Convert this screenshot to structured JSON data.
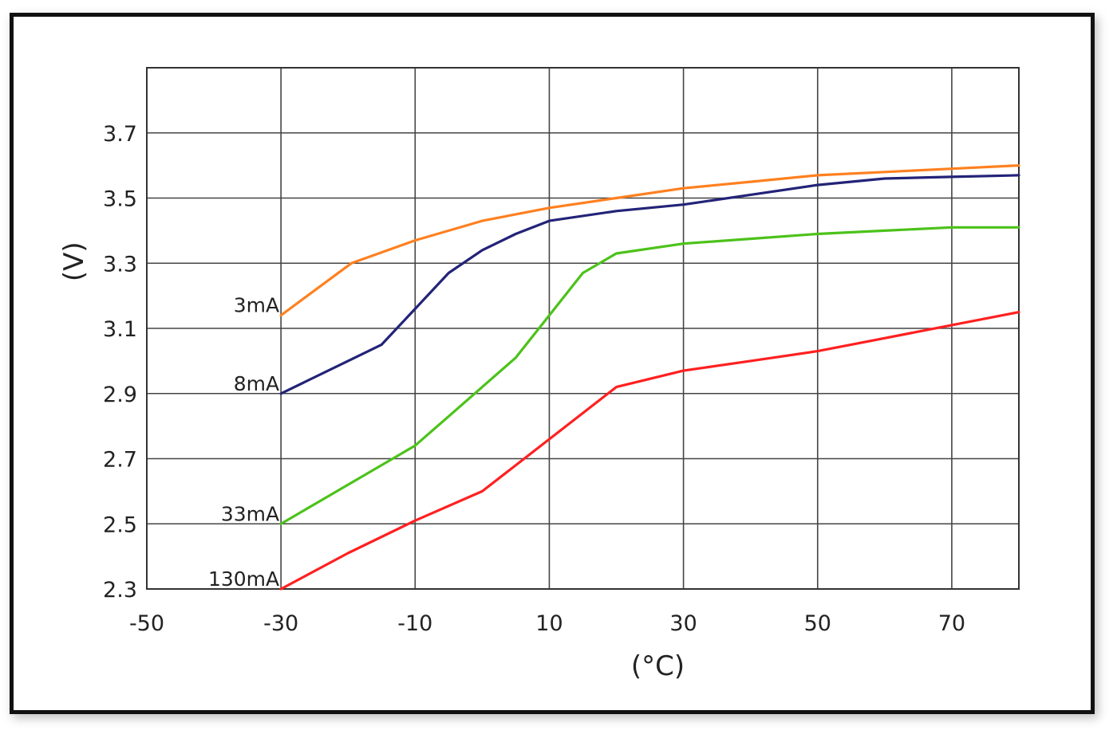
{
  "chart_data": {
    "type": "line",
    "title": "",
    "xlabel": "(°C)",
    "ylabel": "(V)",
    "xlim": [
      -50,
      80
    ],
    "ylim": [
      2.3,
      3.9
    ],
    "xticks": [
      -50,
      -30,
      -10,
      10,
      30,
      50,
      70
    ],
    "xtick_labels": [
      "-50",
      "-30",
      "-10",
      "10",
      "30",
      "50",
      "70"
    ],
    "yticks": [
      2.3,
      2.5,
      2.7,
      2.9,
      3.1,
      3.3,
      3.5,
      3.7
    ],
    "ytick_labels": [
      "2.3",
      "2.5",
      "2.7",
      "2.9",
      "3.1",
      "3.3",
      "3.5",
      "3.7"
    ],
    "x_grid": [
      -50,
      -30,
      -10,
      10,
      30,
      50,
      70,
      80
    ],
    "y_grid": [
      2.3,
      2.5,
      2.7,
      2.9,
      3.1,
      3.3,
      3.5,
      3.7,
      3.9
    ],
    "grid": true,
    "series": [
      {
        "name": "3mA",
        "color": "#ff8020",
        "x": [
          -30,
          -19.5,
          -10,
          0,
          10,
          20,
          30,
          40,
          50,
          60,
          70,
          80
        ],
        "y": [
          3.14,
          3.3,
          3.37,
          3.43,
          3.47,
          3.5,
          3.53,
          3.55,
          3.57,
          3.58,
          3.59,
          3.6
        ]
      },
      {
        "name": "8mA",
        "color": "#232378",
        "x": [
          -30,
          -20,
          -15,
          -10,
          -5,
          0,
          5,
          10,
          20,
          30,
          40,
          50,
          60,
          70,
          80
        ],
        "y": [
          2.9,
          3.0,
          3.05,
          3.16,
          3.27,
          3.34,
          3.39,
          3.43,
          3.46,
          3.48,
          3.51,
          3.54,
          3.56,
          3.565,
          3.57
        ]
      },
      {
        "name": "33mA",
        "color": "#4cc21a",
        "x": [
          -30,
          -10,
          -5,
          0,
          5,
          10,
          15,
          20,
          30,
          40,
          50,
          60,
          70,
          80
        ],
        "y": [
          2.5,
          2.74,
          2.83,
          2.92,
          3.01,
          3.14,
          3.27,
          3.33,
          3.36,
          3.375,
          3.39,
          3.4,
          3.41,
          3.41
        ]
      },
      {
        "name": "130mA",
        "color": "#ff2020",
        "x": [
          -30,
          -20,
          -10,
          0,
          10,
          20,
          30,
          40,
          50,
          60,
          70,
          80
        ],
        "y": [
          2.3,
          2.41,
          2.51,
          2.6,
          2.76,
          2.92,
          2.97,
          3.0,
          3.03,
          3.07,
          3.11,
          3.15
        ]
      }
    ]
  }
}
